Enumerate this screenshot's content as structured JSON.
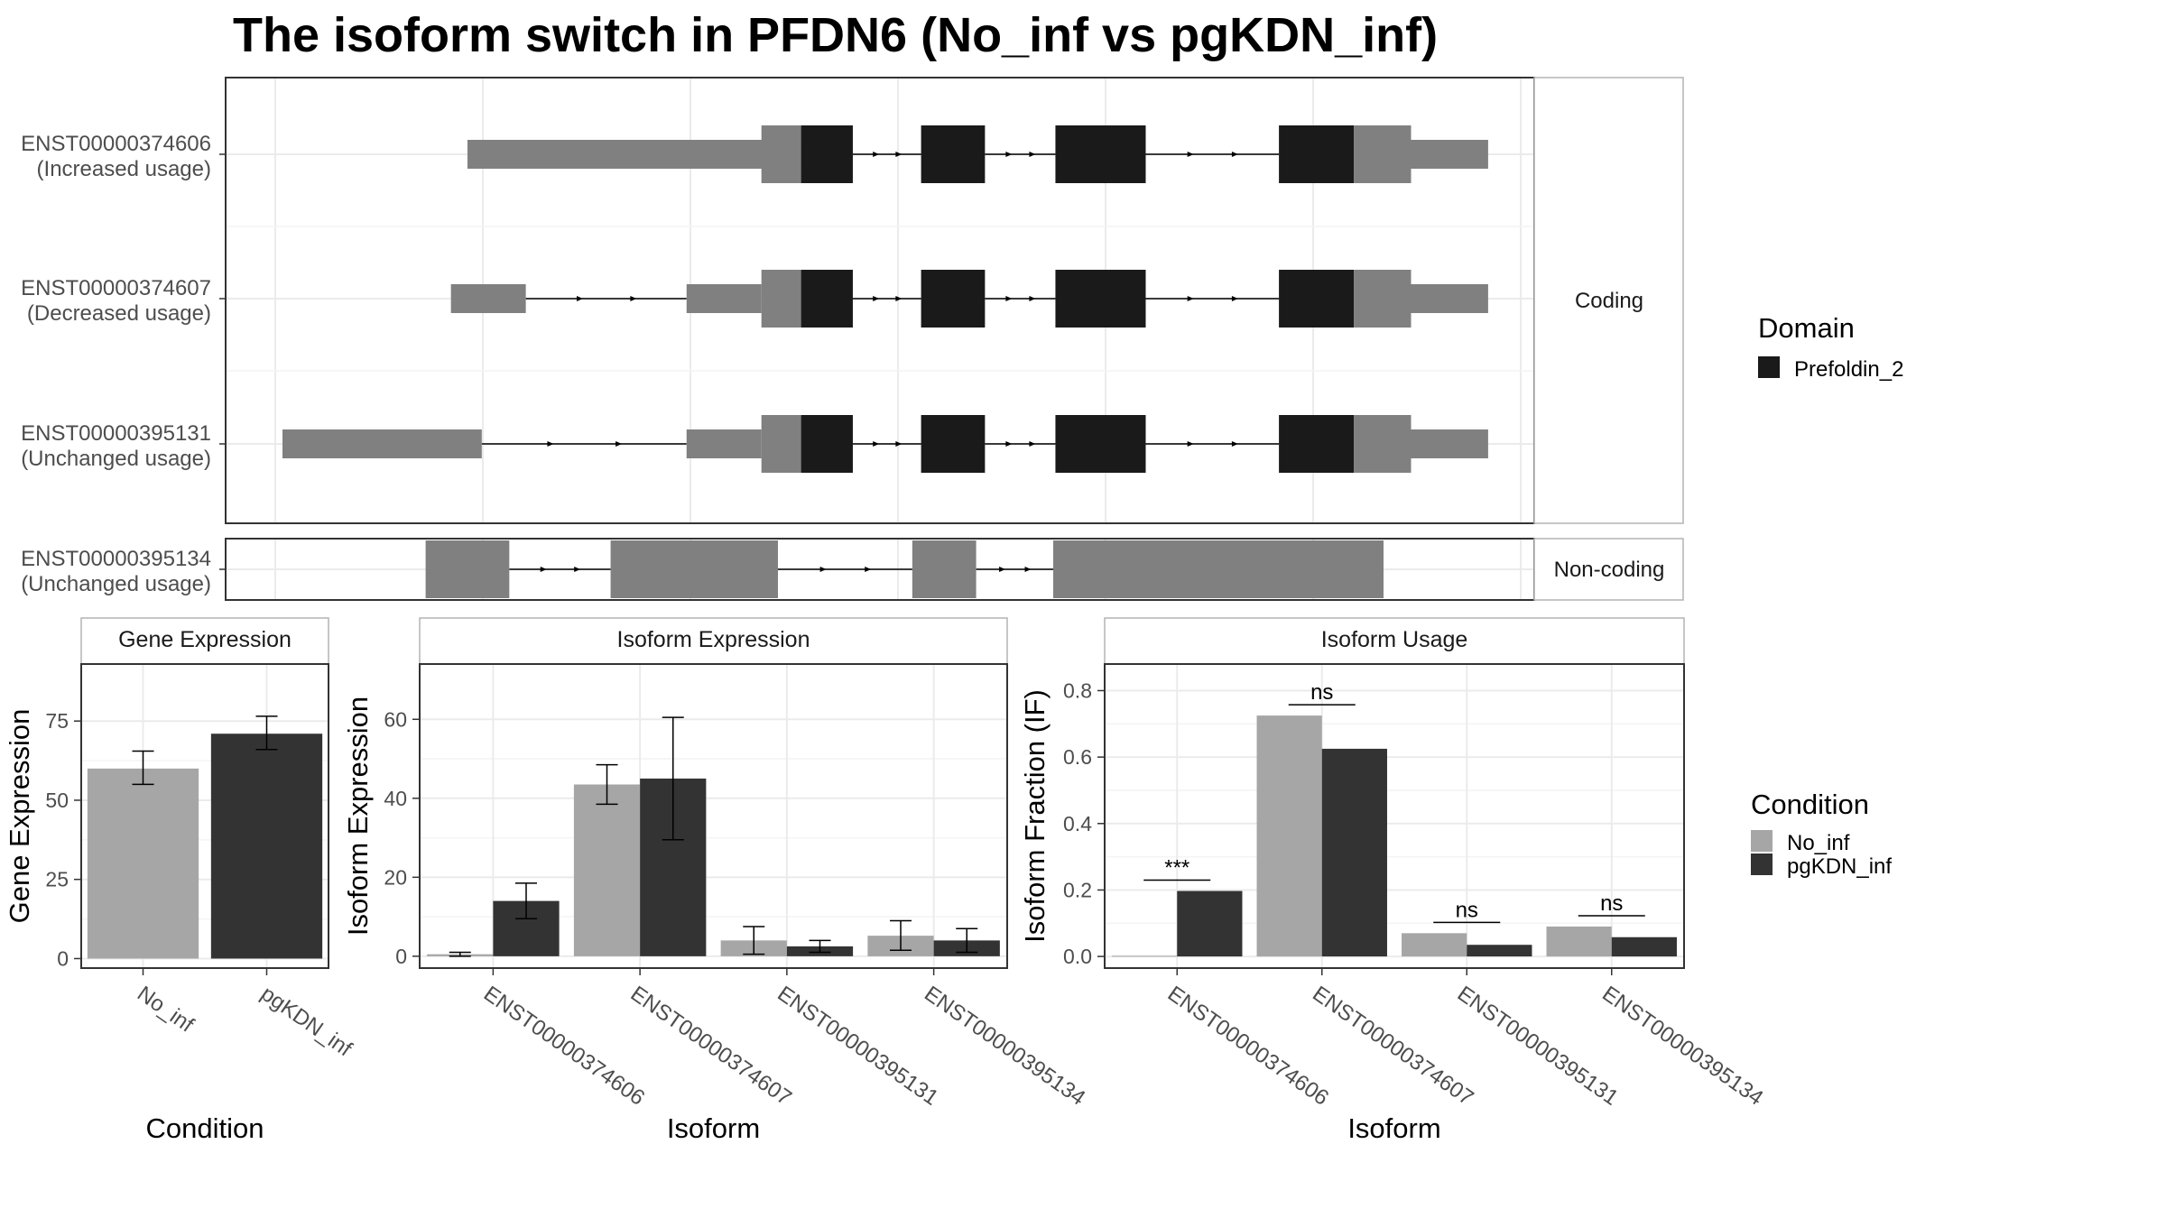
{
  "figure": {
    "title": "The isoform switch in PFDN6 (No_inf vs pgKDN_inf)"
  },
  "legends": {
    "domain": {
      "title": "Domain",
      "entries": [
        {
          "label": "Prefoldin_2",
          "color": "#1a1a1a"
        }
      ]
    },
    "condition": {
      "title": "Condition",
      "entries": [
        {
          "label": "No_inf",
          "color": "#a6a6a6"
        },
        {
          "label": "pgKDN_inf",
          "color": "#333333"
        }
      ]
    }
  },
  "colors": {
    "exon_noncoding": "#808080",
    "domain": "#1a1a1a",
    "no_inf": "#a6a6a6",
    "pgkdn_inf": "#333333"
  },
  "chart_data": [
    {
      "type": "gene-structure",
      "panels": [
        {
          "strip_label": "Coding",
          "isoforms": [
            {
              "id": "ENST00000374606",
              "usage": "(Increased usage)",
              "features": [
                {
                  "kind": "utr",
                  "start": 0.168,
                  "end": 0.471
                },
                {
                  "kind": "cds",
                  "start": 0.435,
                  "end": 0.471
                },
                {
                  "kind": "domain",
                  "start": 0.471,
                  "end": 0.518
                },
                {
                  "kind": "domain",
                  "start": 0.58,
                  "end": 0.638
                },
                {
                  "kind": "domain",
                  "start": 0.702,
                  "end": 0.784
                },
                {
                  "kind": "domain",
                  "start": 0.905,
                  "end": 0.973
                },
                {
                  "kind": "cds",
                  "start": 0.973,
                  "end": 1.025
                },
                {
                  "kind": "utr",
                  "start": 1.025,
                  "end": 1.095
                }
              ],
              "introns": [
                [
                  0.518,
                  0.58
                ],
                [
                  0.638,
                  0.702
                ],
                [
                  0.784,
                  0.905
                ]
              ]
            },
            {
              "id": "ENST00000374607",
              "usage": "(Decreased usage)",
              "features": [
                {
                  "kind": "utr",
                  "start": 0.153,
                  "end": 0.221
                },
                {
                  "kind": "utr",
                  "start": 0.367,
                  "end": 0.435
                },
                {
                  "kind": "cds",
                  "start": 0.435,
                  "end": 0.471
                },
                {
                  "kind": "domain",
                  "start": 0.471,
                  "end": 0.518
                },
                {
                  "kind": "domain",
                  "start": 0.58,
                  "end": 0.638
                },
                {
                  "kind": "domain",
                  "start": 0.702,
                  "end": 0.784
                },
                {
                  "kind": "domain",
                  "start": 0.905,
                  "end": 0.973
                },
                {
                  "kind": "cds",
                  "start": 0.973,
                  "end": 1.025
                },
                {
                  "kind": "utr",
                  "start": 1.025,
                  "end": 1.095
                }
              ],
              "introns": [
                [
                  0.221,
                  0.367
                ],
                [
                  0.518,
                  0.58
                ],
                [
                  0.638,
                  0.702
                ],
                [
                  0.784,
                  0.905
                ]
              ]
            },
            {
              "id": "ENST00000395131",
              "usage": "(Unchanged usage)",
              "features": [
                {
                  "kind": "utr",
                  "start": 0.0,
                  "end": 0.181
                },
                {
                  "kind": "utr",
                  "start": 0.367,
                  "end": 0.435
                },
                {
                  "kind": "cds",
                  "start": 0.435,
                  "end": 0.471
                },
                {
                  "kind": "domain",
                  "start": 0.471,
                  "end": 0.518
                },
                {
                  "kind": "domain",
                  "start": 0.58,
                  "end": 0.638
                },
                {
                  "kind": "domain",
                  "start": 0.702,
                  "end": 0.784
                },
                {
                  "kind": "domain",
                  "start": 0.905,
                  "end": 0.973
                },
                {
                  "kind": "cds",
                  "start": 0.973,
                  "end": 1.025
                },
                {
                  "kind": "utr",
                  "start": 1.025,
                  "end": 1.095
                }
              ],
              "introns": [
                [
                  0.181,
                  0.367
                ],
                [
                  0.518,
                  0.58
                ],
                [
                  0.638,
                  0.702
                ],
                [
                  0.784,
                  0.905
                ]
              ]
            }
          ]
        },
        {
          "strip_label": "Non-coding",
          "isoforms": [
            {
              "id": "ENST00000395134",
              "usage": "(Unchanged usage)",
              "features": [
                {
                  "kind": "noncoding",
                  "start": 0.13,
                  "end": 0.206
                },
                {
                  "kind": "noncoding",
                  "start": 0.298,
                  "end": 0.45
                },
                {
                  "kind": "noncoding",
                  "start": 0.572,
                  "end": 0.63
                },
                {
                  "kind": "noncoding",
                  "start": 0.7,
                  "end": 1.0
                }
              ],
              "introns": [
                [
                  0.206,
                  0.298
                ],
                [
                  0.45,
                  0.572
                ],
                [
                  0.63,
                  0.7
                ]
              ]
            }
          ]
        }
      ]
    },
    {
      "type": "bar",
      "title": "Gene Expression",
      "xlabel": "Condition",
      "ylabel": "Gene Expression",
      "categories": [
        "No_inf",
        "pgKDN_inf"
      ],
      "values": [
        60,
        71
      ],
      "errors": [
        [
          55,
          65.5
        ],
        [
          66,
          76.5
        ]
      ],
      "ylim": [
        -3,
        93
      ],
      "yticks": [
        0,
        25,
        50,
        75
      ]
    },
    {
      "type": "bar",
      "title": "Isoform Expression",
      "xlabel": "Isoform",
      "ylabel": "Isoform Expression",
      "categories": [
        "ENST00000374606",
        "ENST00000374607",
        "ENST00000395131",
        "ENST00000395134"
      ],
      "series": [
        {
          "name": "No_inf",
          "values": [
            0.5,
            43.5,
            4,
            5.2
          ],
          "errors": [
            [
              0,
              1
            ],
            [
              38.5,
              48.5
            ],
            [
              0.5,
              7.5
            ],
            [
              1.5,
              9
            ]
          ]
        },
        {
          "name": "pgKDN_inf",
          "values": [
            14,
            45,
            2.5,
            4
          ],
          "errors": [
            [
              9.5,
              18.5
            ],
            [
              29.5,
              60.5
            ],
            [
              1,
              4
            ],
            [
              1,
              7
            ]
          ]
        }
      ],
      "ylim": [
        -3,
        74
      ],
      "yticks": [
        0,
        20,
        40,
        60
      ]
    },
    {
      "type": "bar",
      "title": "Isoform Usage",
      "xlabel": "Isoform",
      "ylabel": "Isoform Fraction (IF)",
      "categories": [
        "ENST00000374606",
        "ENST00000374607",
        "ENST00000395131",
        "ENST00000395134"
      ],
      "series": [
        {
          "name": "No_inf",
          "values": [
            0.002,
            0.725,
            0.07,
            0.09
          ]
        },
        {
          "name": "pgKDN_inf",
          "values": [
            0.197,
            0.625,
            0.035,
            0.058
          ]
        }
      ],
      "significance": [
        "***",
        "ns",
        "ns",
        "ns"
      ],
      "ylim": [
        -0.035,
        0.88
      ],
      "yticks": [
        0.0,
        0.2,
        0.4,
        0.6,
        0.8
      ],
      "ytick_labels": [
        "0.0",
        "0.2",
        "0.4",
        "0.6",
        "0.8"
      ]
    }
  ]
}
